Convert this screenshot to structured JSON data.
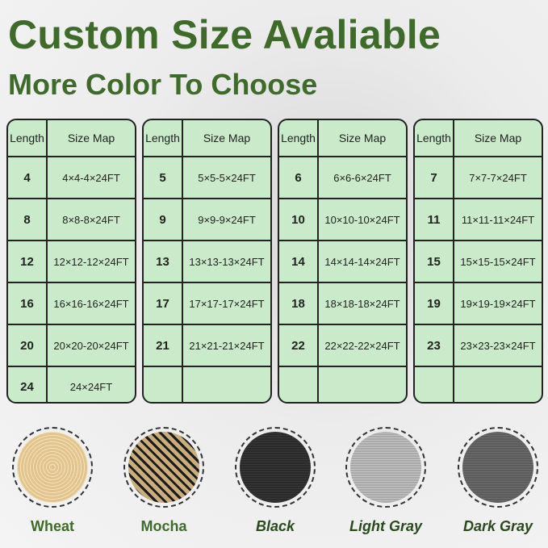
{
  "title": "Custom Size Avaliable",
  "subtitle": "More Color To Choose",
  "header": {
    "length": "Length",
    "size": "Size Map"
  },
  "tables": [
    {
      "rows": [
        [
          "4",
          "4×4-4×24FT"
        ],
        [
          "8",
          "8×8-8×24FT"
        ],
        [
          "12",
          "12×12-12×24FT"
        ],
        [
          "16",
          "16×16-16×24FT"
        ],
        [
          "20",
          "20×20-20×24FT"
        ],
        [
          "24",
          "24×24FT"
        ]
      ]
    },
    {
      "rows": [
        [
          "5",
          "5×5-5×24FT"
        ],
        [
          "9",
          "9×9-9×24FT"
        ],
        [
          "13",
          "13×13-13×24FT"
        ],
        [
          "17",
          "17×17-17×24FT"
        ],
        [
          "21",
          "21×21-21×24FT"
        ],
        [
          "",
          ""
        ]
      ]
    },
    {
      "rows": [
        [
          "6",
          "6×6-6×24FT"
        ],
        [
          "10",
          "10×10-10×24FT"
        ],
        [
          "14",
          "14×14-14×24FT"
        ],
        [
          "18",
          "18×18-18×24FT"
        ],
        [
          "22",
          "22×22-22×24FT"
        ],
        [
          "",
          ""
        ]
      ]
    },
    {
      "rows": [
        [
          "7",
          "7×7-7×24FT"
        ],
        [
          "11",
          "11×11-11×24FT"
        ],
        [
          "15",
          "15×15-15×24FT"
        ],
        [
          "19",
          "19×19-19×24FT"
        ],
        [
          "23",
          "23×23-23×24FT"
        ],
        [
          "",
          ""
        ]
      ]
    }
  ],
  "colors": [
    {
      "name": "Wheat",
      "hex": "#e2c58e"
    },
    {
      "name": "Mocha",
      "hex": "#c9ad7c"
    },
    {
      "name": "Black",
      "hex": "#2a2a2a"
    },
    {
      "name": "Light Gray",
      "hex": "#a9a9a9"
    },
    {
      "name": "Dark Gray",
      "hex": "#5c5c5c"
    }
  ]
}
